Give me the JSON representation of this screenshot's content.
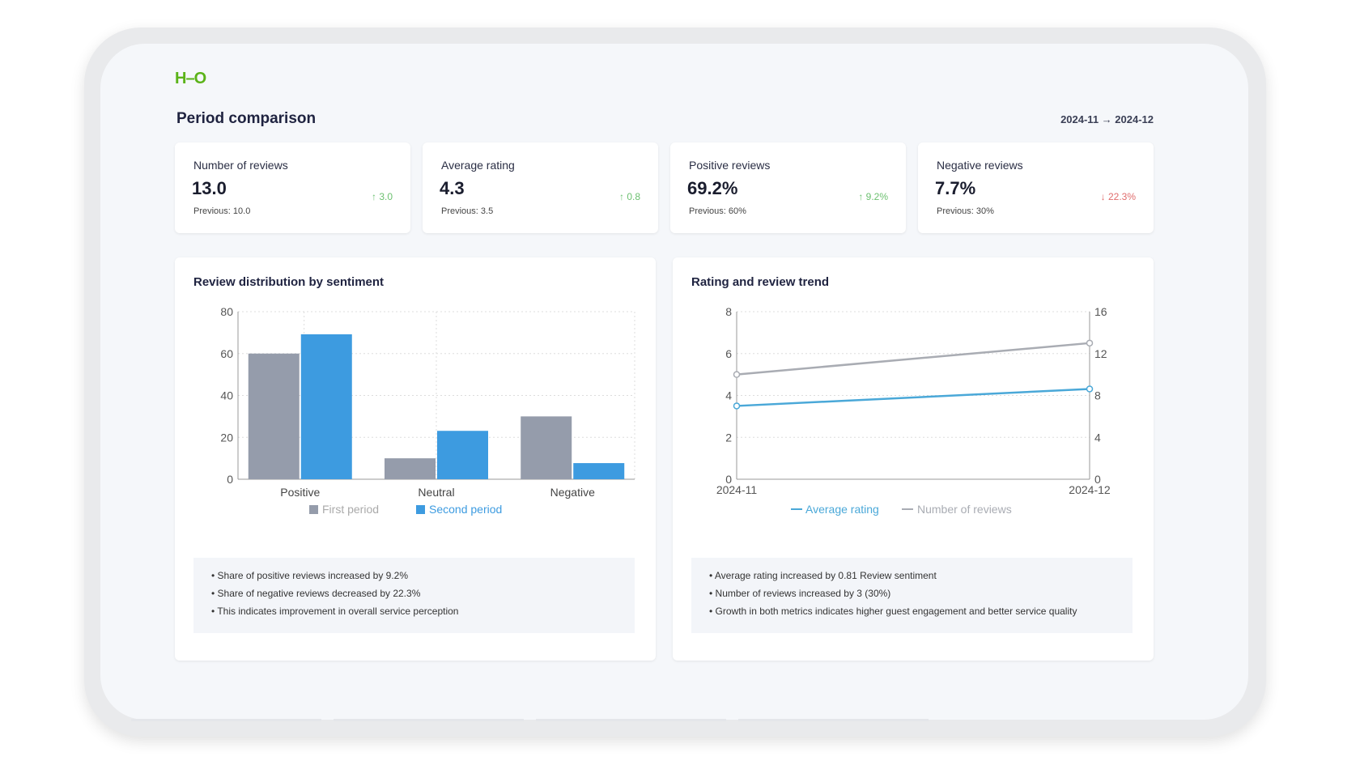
{
  "logo_text": "H–O",
  "title": "Period comparison",
  "date_range": "2024-11 → 2024-12",
  "cards": [
    {
      "label": "Number of reviews",
      "value": "13.0",
      "previous": "Previous: 10.0",
      "change": "↑ 3.0",
      "direction": "up"
    },
    {
      "label": "Average rating",
      "value": "4.3",
      "previous": "Previous: 3.5",
      "change": "↑ 0.8",
      "direction": "up"
    },
    {
      "label": "Positive reviews",
      "value": "69.2%",
      "previous": "Previous: 60%",
      "change": "↑ 9.2%",
      "direction": "up"
    },
    {
      "label": "Negative reviews",
      "value": "7.7%",
      "previous": "Previous: 30%",
      "change": "↓ 22.3%",
      "direction": "down"
    }
  ],
  "colors": {
    "first": "#959cab",
    "second": "#3d9be0",
    "rating": "#4aa8d8",
    "reviews": "#a9acb3",
    "up": "#6cc070",
    "down": "#e06c6c",
    "logo": "#5bb318"
  },
  "chart_data": [
    {
      "type": "bar",
      "title": "Review distribution by sentiment",
      "categories": [
        "Positive",
        "Neutral",
        "Negative"
      ],
      "series": [
        {
          "name": "First period",
          "values": [
            60,
            10,
            30
          ]
        },
        {
          "name": "Second period",
          "values": [
            69.2,
            23.1,
            7.7
          ]
        }
      ],
      "ylim": [
        0,
        80
      ],
      "yticks": [
        0,
        20,
        40,
        60,
        80
      ],
      "grid": true,
      "legend": "bottom"
    },
    {
      "type": "line",
      "title": "Rating and review trend",
      "x": [
        "2024-11",
        "2024-12"
      ],
      "series": [
        {
          "name": "Average rating",
          "axis": "left",
          "values": [
            3.5,
            4.31
          ]
        },
        {
          "name": "Number of reviews",
          "axis": "right",
          "values": [
            10,
            13
          ]
        }
      ],
      "ylim_left": [
        0,
        8
      ],
      "yticks_left": [
        0,
        2,
        4,
        6,
        8
      ],
      "ylim_right": [
        0,
        16
      ],
      "yticks_right": [
        0,
        4,
        8,
        12,
        16
      ],
      "grid": true,
      "legend": "bottom"
    }
  ],
  "notes_left": [
    "Share of positive reviews increased by 9.2%",
    "Share of negative reviews decreased by 22.3%",
    "This indicates improvement in overall service perception"
  ],
  "notes_right": [
    "Average rating increased by 0.81 Review sentiment",
    "Number of reviews increased by 3 (30%)",
    "Growth in both metrics indicates higher guest engagement and better service quality"
  ]
}
